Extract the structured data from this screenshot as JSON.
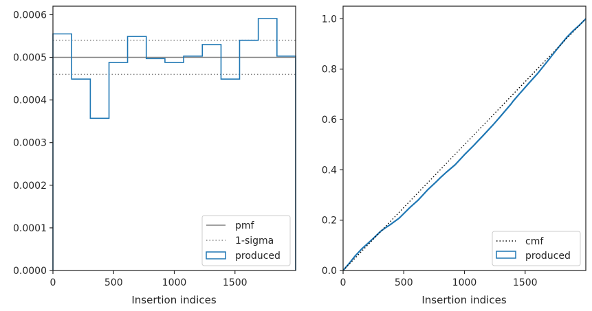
{
  "chart_data": [
    {
      "type": "step",
      "xlabel": "Insertion indices",
      "ylabel": "",
      "xlim": [
        0,
        2000
      ],
      "ylim": [
        0,
        0.00062
      ],
      "xticks": [
        0,
        500,
        1000,
        1500
      ],
      "xtick_labels": [
        "0",
        "500",
        "1000",
        "1500"
      ],
      "yticks": [
        0,
        0.0001,
        0.0002,
        0.0003,
        0.0004,
        0.0005,
        0.0006
      ],
      "ytick_labels": [
        "0.0000",
        "0.0001",
        "0.0002",
        "0.0003",
        "0.0004",
        "0.0005",
        "0.0006"
      ],
      "pmf": 0.0005,
      "sigma_band": [
        0.00046,
        0.00054
      ],
      "histogram": {
        "bin_edges": [
          0,
          154,
          308,
          462,
          615,
          769,
          923,
          1077,
          1231,
          1385,
          1538,
          1692,
          1846,
          2000
        ],
        "values": [
          0.000555,
          0.000449,
          0.000357,
          0.000488,
          0.000549,
          0.000497,
          0.000488,
          0.000503,
          0.00053,
          0.000449,
          0.00054,
          0.000591,
          0.000503
        ]
      },
      "legend": {
        "location": "lower right",
        "entries": [
          {
            "label": "pmf",
            "style": "solid",
            "color": "#808080"
          },
          {
            "label": "1-sigma",
            "style": "dotted",
            "color": "#808080"
          },
          {
            "label": "produced",
            "style": "box",
            "color": "#1f77b4"
          }
        ]
      }
    },
    {
      "type": "line",
      "xlabel": "Insertion indices",
      "ylabel": "",
      "xlim": [
        0,
        2000
      ],
      "ylim": [
        0,
        1.05
      ],
      "xticks": [
        0,
        500,
        1000,
        1500
      ],
      "xtick_labels": [
        "0",
        "500",
        "1000",
        "1500"
      ],
      "yticks": [
        0,
        0.2,
        0.4,
        0.6,
        0.8,
        1.0
      ],
      "ytick_labels": [
        "0.0",
        "0.2",
        "0.4",
        "0.6",
        "0.8",
        "1.0"
      ],
      "cmf": {
        "x": [
          0,
          2000
        ],
        "y": [
          0,
          1
        ]
      },
      "produced": {
        "x": [
          0,
          50,
          100,
          154,
          200,
          250,
          308,
          350,
          400,
          462,
          500,
          550,
          615,
          650,
          700,
          769,
          800,
          850,
          923,
          950,
          1000,
          1077,
          1100,
          1150,
          1231,
          1300,
          1385,
          1400,
          1450,
          1538,
          1600,
          1692,
          1750,
          1846,
          1900,
          1950,
          2000
        ],
        "y": [
          0,
          0.028,
          0.058,
          0.086,
          0.106,
          0.128,
          0.155,
          0.17,
          0.186,
          0.208,
          0.226,
          0.25,
          0.278,
          0.296,
          0.322,
          0.353,
          0.368,
          0.39,
          0.42,
          0.434,
          0.46,
          0.497,
          0.509,
          0.534,
          0.576,
          0.614,
          0.662,
          0.672,
          0.7,
          0.748,
          0.781,
          0.836,
          0.872,
          0.928,
          0.954,
          0.976,
          1.0
        ]
      },
      "legend": {
        "location": "lower right",
        "entries": [
          {
            "label": "cmf",
            "style": "dotted",
            "color": "#000000"
          },
          {
            "label": "produced",
            "style": "box",
            "color": "#1f77b4"
          }
        ]
      }
    }
  ]
}
